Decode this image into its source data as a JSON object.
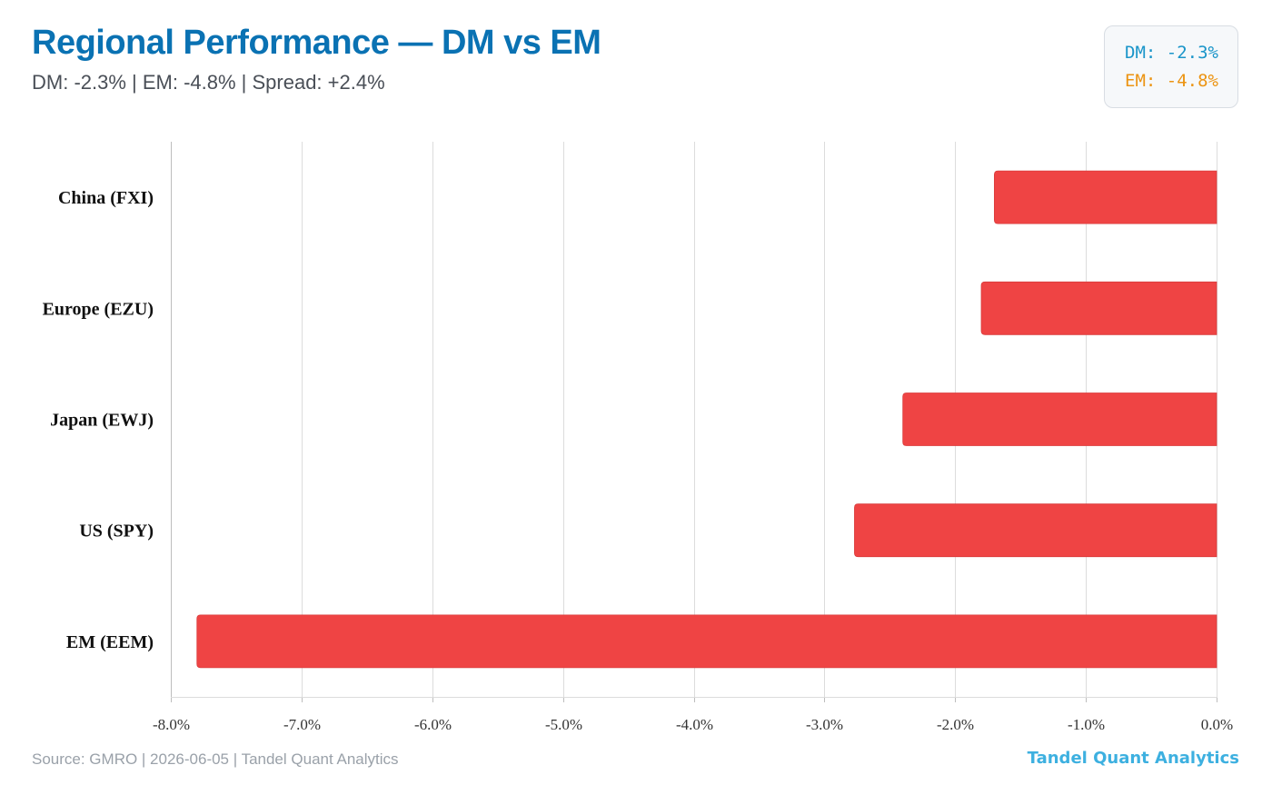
{
  "header": {
    "title": "Regional Performance — DM vs EM",
    "subtitle": "DM: -2.3% | EM: -4.8% | Spread: +2.4%"
  },
  "kpi": {
    "dm": "DM: -2.3%",
    "em": "EM: -4.8%",
    "dm_color": "#1a95c9",
    "em_color": "#ec9412"
  },
  "footer": {
    "source": "Source: GMRO | 2026-06-05 | Tandel Quant Analytics",
    "brand": "Tandel Quant Analytics"
  },
  "chart_data": {
    "type": "bar",
    "orientation": "horizontal",
    "categories": [
      "China (FXI)",
      "Europe (EZU)",
      "Japan (EWJ)",
      "US (SPY)",
      "EM (EEM)"
    ],
    "values": [
      -1.7,
      -1.8,
      -2.4,
      -2.77,
      -7.8
    ],
    "unit": "%",
    "xlim": [
      -8.0,
      0.0
    ],
    "xticks": [
      -8,
      -7,
      -6,
      -5,
      -4,
      -3,
      -2,
      -1,
      0
    ],
    "xtick_labels": [
      "-8.0%",
      "-7.0%",
      "-6.0%",
      "-5.0%",
      "-4.0%",
      "-3.0%",
      "-2.0%",
      "-1.0%",
      "0.0%"
    ],
    "grid": "vertical",
    "bar_color": "#ef4444",
    "legend": "none"
  }
}
